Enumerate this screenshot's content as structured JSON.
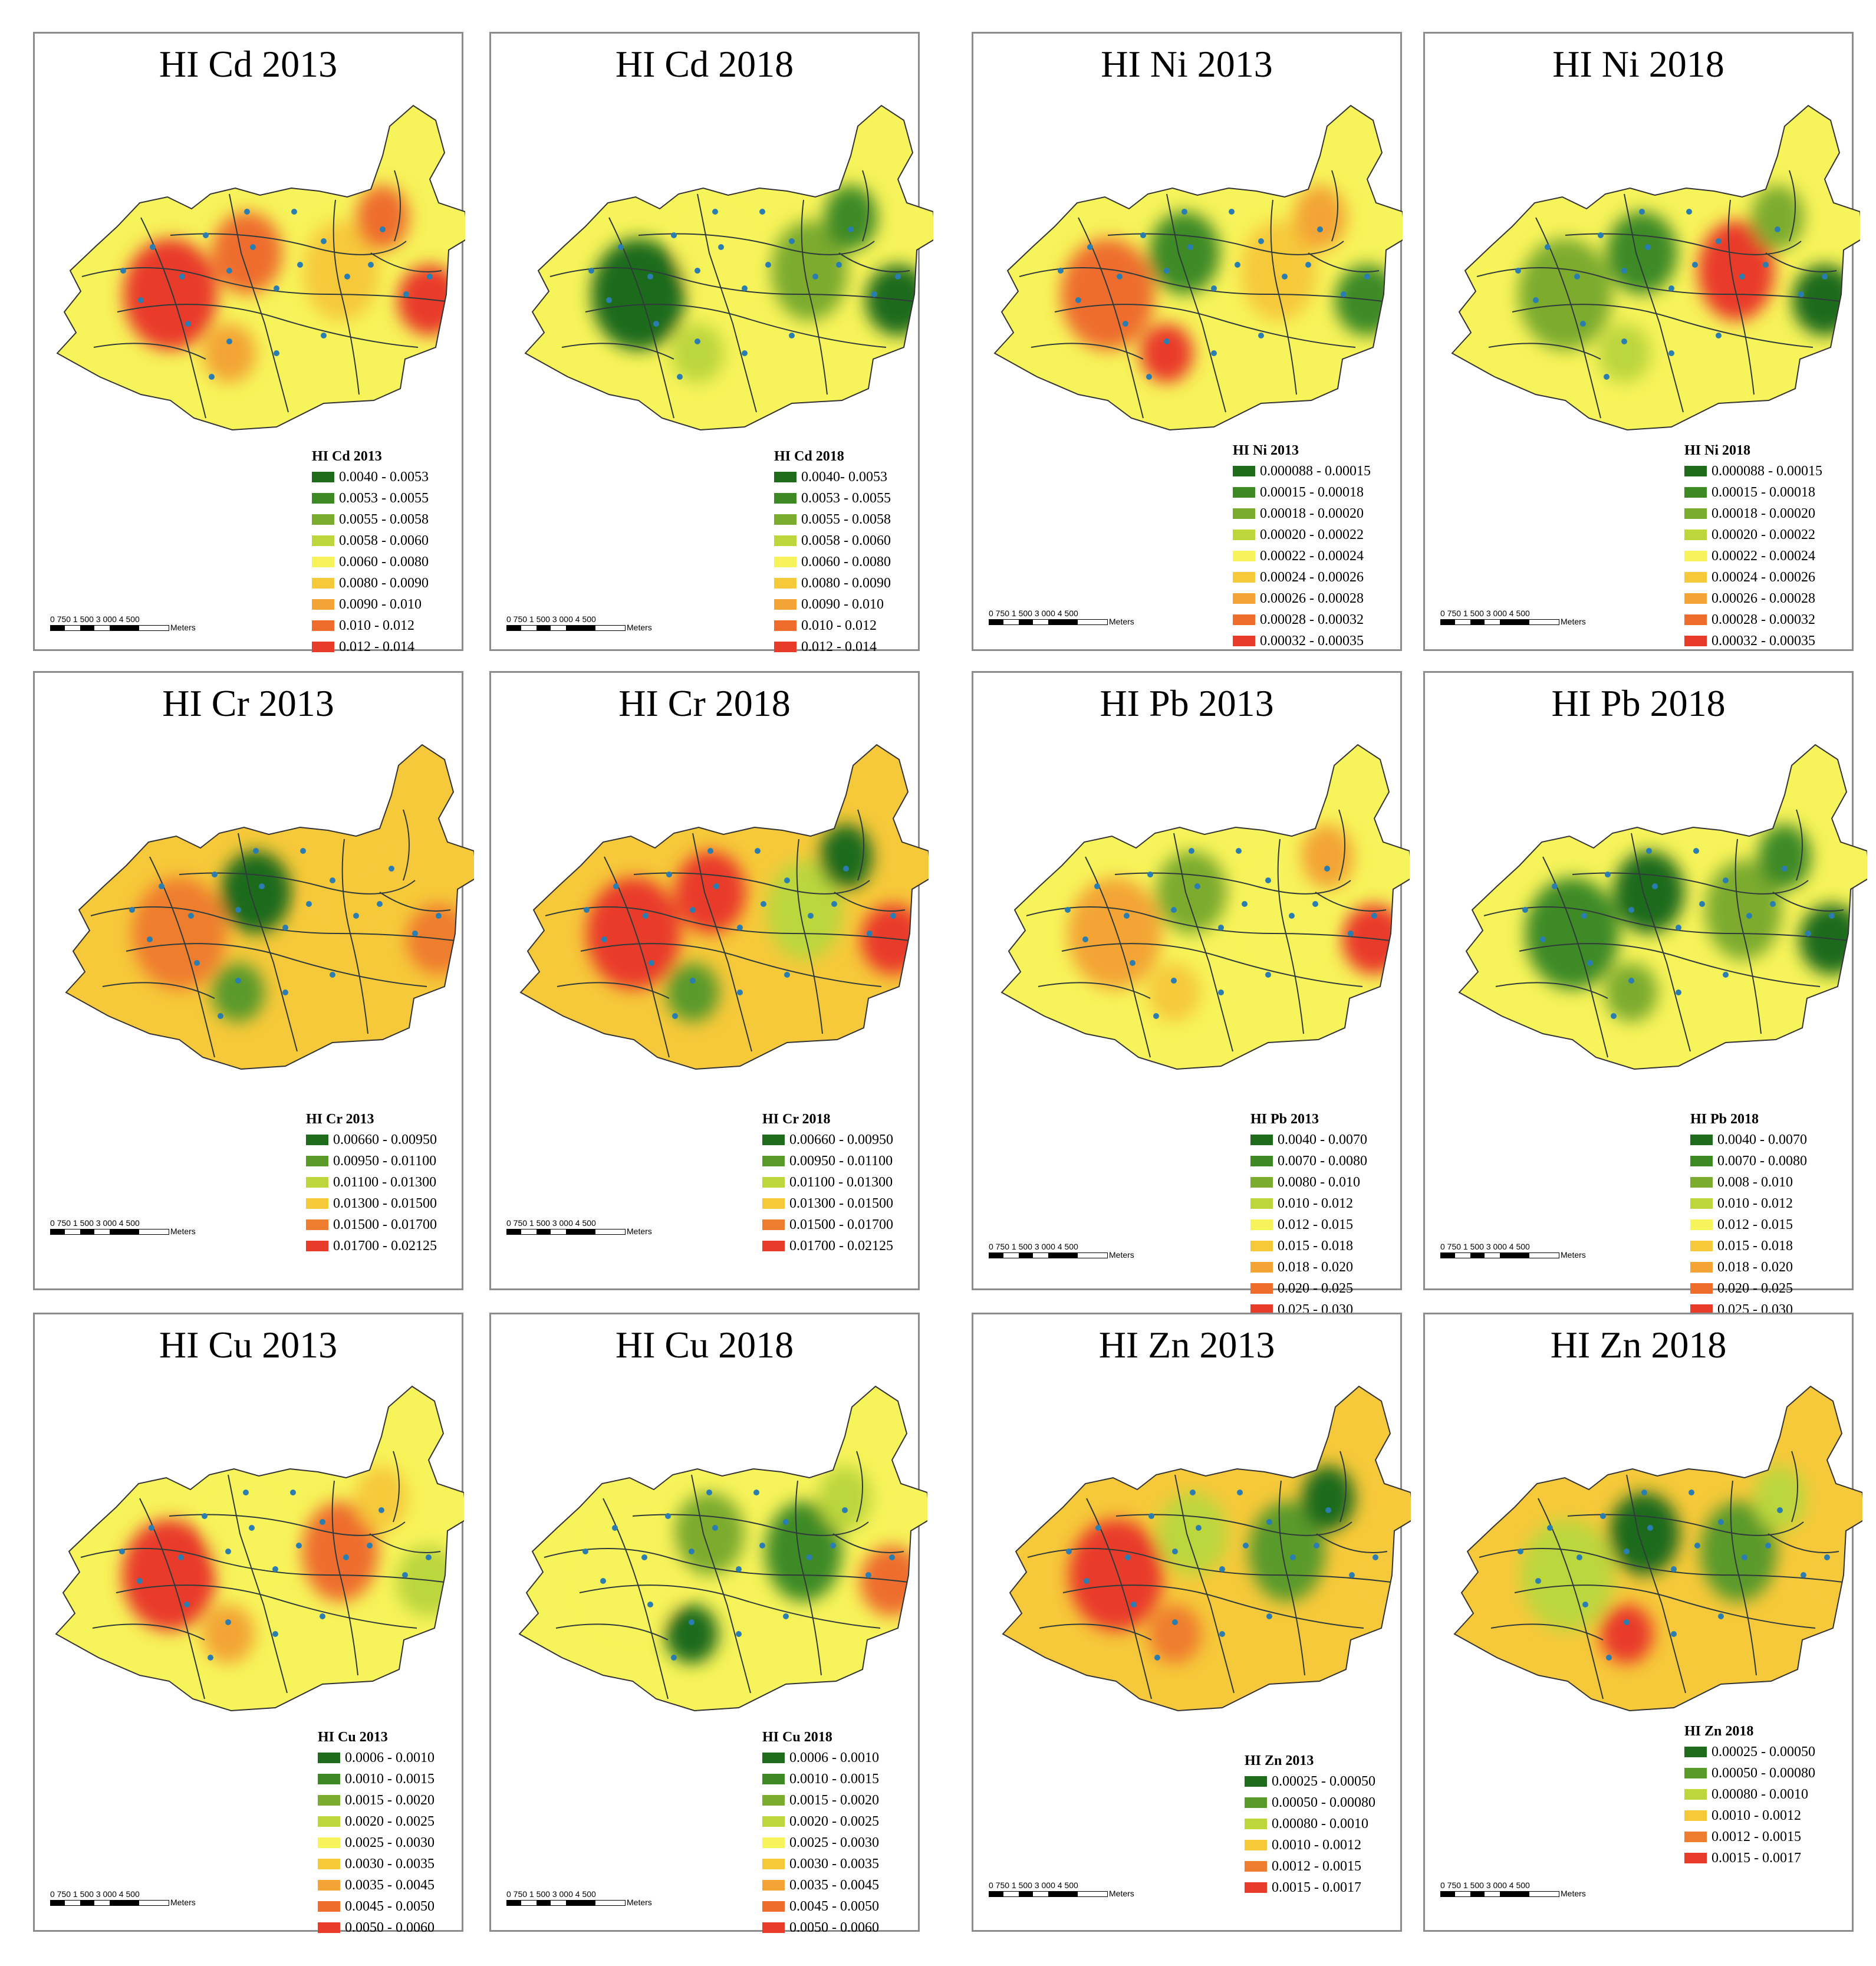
{
  "palettes": {
    "nine": [
      "#1e6b1c",
      "#3d8a25",
      "#7bab2f",
      "#bcd63c",
      "#f7f35a",
      "#f6c93a",
      "#f3a434",
      "#ee6d2d",
      "#e93b2a"
    ],
    "six": [
      "#1e6b1c",
      "#5a9a2a",
      "#bcd63c",
      "#f6c93a",
      "#ef7d2f",
      "#e93b2a"
    ]
  },
  "scale_bar": {
    "numbers": "0   750 1 500   3 000   4 500",
    "unit": "Meters"
  },
  "panels": [
    {
      "title": "HI Cd 2013",
      "legend_title": "HI Cd 2013",
      "palette": "nine",
      "classes": [
        "0.0040 - 0.0053",
        "0.0053 - 0.0055",
        "0.0055 - 0.0058",
        "0.0058 - 0.0060",
        "0.0060 - 0.0080",
        "0.0080 - 0.0090",
        "0.0090 - 0.010",
        "0.010 - 0.012",
        "0.012 - 0.014"
      ]
    },
    {
      "title": "HI Cd 2018",
      "legend_title": "HI Cd 2018",
      "palette": "nine",
      "classes": [
        "0.0040- 0.0053",
        "0.0053 - 0.0055",
        "0.0055 - 0.0058",
        "0.0058 - 0.0060",
        "0.0060 - 0.0080",
        "0.0080 - 0.0090",
        "0.0090 - 0.010",
        "0.010 - 0.012",
        "0.012 - 0.014"
      ]
    },
    {
      "title": "HI Ni 2013",
      "legend_title": "HI Ni 2013",
      "palette": "nine",
      "classes": [
        "0.000088 - 0.00015",
        "0.00015 - 0.00018",
        "0.00018 - 0.00020",
        "0.00020 - 0.00022",
        "0.00022 - 0.00024",
        "0.00024 - 0.00026",
        "0.00026 - 0.00028",
        "0.00028 - 0.00032",
        "0.00032 - 0.00035"
      ]
    },
    {
      "title": "HI Ni 2018",
      "legend_title": "HI Ni 2018",
      "palette": "nine",
      "classes": [
        "0.000088 - 0.00015",
        "0.00015 - 0.00018",
        "0.00018 - 0.00020",
        "0.00020 - 0.00022",
        "0.00022 - 0.00024",
        "0.00024 - 0.00026",
        "0.00026 - 0.00028",
        "0.00028 - 0.00032",
        "0.00032 - 0.00035"
      ]
    },
    {
      "title": "HI Cr 2013",
      "legend_title": "HI Cr 2013",
      "palette": "six",
      "classes": [
        "0.00660 - 0.00950",
        "0.00950 - 0.01100",
        "0.01100 - 0.01300",
        "0.01300 - 0.01500",
        "0.01500 - 0.01700",
        "0.01700 - 0.02125"
      ]
    },
    {
      "title": "HI Cr 2018",
      "legend_title": "HI Cr 2018",
      "palette": "six",
      "classes": [
        "0.00660 - 0.00950",
        "0.00950 - 0.01100",
        "0.01100 - 0.01300",
        "0.01300 - 0.01500",
        "0.01500 - 0.01700",
        "0.01700 - 0.02125"
      ]
    },
    {
      "title": "HI Pb 2013",
      "legend_title": "HI Pb 2013",
      "palette": "nine",
      "classes": [
        "0.0040 - 0.0070",
        "0.0070 - 0.0080",
        "0.0080 - 0.010",
        "0.010 - 0.012",
        "0.012 - 0.015",
        "0.015 - 0.018",
        "0.018 - 0.020",
        "0.020 - 0.025",
        "0.025 - 0.030"
      ]
    },
    {
      "title": "HI Pb 2018",
      "legend_title": "HI Pb 2018",
      "palette": "nine",
      "classes": [
        "0.0040 - 0.0070",
        "0.0070 - 0.0080",
        "0.008 - 0.010",
        "0.010 - 0.012",
        "0.012 - 0.015",
        "0.015 - 0.018",
        "0.018 - 0.020",
        "0.020 - 0.025",
        "0.025 - 0.030"
      ]
    },
    {
      "title": "HI Cu 2013",
      "legend_title": "HI Cu 2013",
      "palette": "nine",
      "classes": [
        "0.0006 - 0.0010",
        "0.0010 - 0.0015",
        "0.0015 - 0.0020",
        "0.0020 - 0.0025",
        "0.0025 - 0.0030",
        "0.0030 - 0.0035",
        "0.0035 - 0.0045",
        "0.0045 - 0.0050",
        "0.0050 - 0.0060"
      ]
    },
    {
      "title": "HI Cu 2018",
      "legend_title": "HI Cu 2018",
      "palette": "nine",
      "classes": [
        "0.0006 - 0.0010",
        "0.0010 - 0.0015",
        "0.0015 - 0.0020",
        "0.0020 - 0.0025",
        "0.0025 - 0.0030",
        "0.0030 - 0.0035",
        "0.0035 - 0.0045",
        "0.0045 - 0.0050",
        "0.0050 - 0.0060"
      ]
    },
    {
      "title": "HI Zn 2013",
      "legend_title": "HI Zn 2013",
      "palette": "six",
      "classes": [
        "0.00025 - 0.00050",
        "0.00050 - 0.00080",
        "0.00080 - 0.0010",
        "0.0010 - 0.0012",
        "0.0012 - 0.0015",
        "0.0015 - 0.0017"
      ]
    },
    {
      "title": "HI Zn 2018",
      "legend_title": "HI Zn 2018",
      "palette": "six",
      "classes": [
        "0.00025 - 0.00050",
        "0.00050 - 0.00080",
        "0.00080 - 0.0010",
        "0.0010 - 0.0012",
        "0.0012 - 0.0015",
        "0.0015 - 0.0017"
      ]
    }
  ],
  "hotspot_classes": [
    [
      8,
      7,
      5,
      8,
      6,
      7
    ],
    [
      0,
      4,
      2,
      0,
      3,
      1
    ],
    [
      7,
      1,
      5,
      1,
      8,
      6
    ],
    [
      2,
      1,
      8,
      0,
      3,
      2
    ],
    [
      4,
      0,
      3,
      4,
      1,
      3
    ],
    [
      5,
      5,
      2,
      5,
      1,
      0
    ],
    [
      6,
      2,
      4,
      8,
      5,
      6
    ],
    [
      1,
      0,
      2,
      0,
      2,
      1
    ],
    [
      8,
      4,
      7,
      3,
      6,
      5
    ],
    [
      4,
      2,
      1,
      7,
      0,
      3
    ],
    [
      5,
      2,
      1,
      3,
      4,
      0
    ],
    [
      2,
      0,
      1,
      3,
      5,
      2
    ]
  ]
}
